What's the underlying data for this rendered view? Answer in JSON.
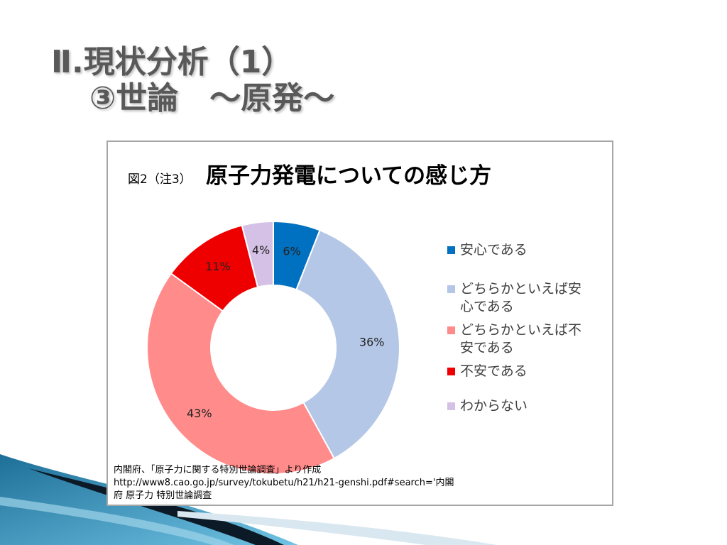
{
  "slide": {
    "title_line1": "Ⅱ.現状分析（1）",
    "title_line2": "③世論　～原発～"
  },
  "chart_data": {
    "type": "pie",
    "donut": true,
    "title_prefix": "図2（注3）",
    "title": "原子力発電についての感じ方",
    "categories": [
      "安心である",
      "どちらかといえば安心である",
      "どちらかといえば不安である",
      "不安である",
      "わからない"
    ],
    "legend_lines": [
      [
        "安心である"
      ],
      [
        "どちらかといえば安",
        "心である"
      ],
      [
        "どちらかといえば不",
        "安である"
      ],
      [
        "不安である"
      ],
      [
        "わからない"
      ]
    ],
    "values": [
      6,
      36,
      43,
      11,
      4
    ],
    "labels": [
      "6%",
      "36%",
      "43%",
      "11%",
      "4%"
    ],
    "colors": [
      "#0070c0",
      "#b4c7e7",
      "#ff8b8b",
      "#ee0000",
      "#d5c1e6"
    ],
    "legend_position": "right"
  },
  "source": {
    "line1": "内閣府、「原子力に関する特別世論調査」より作成",
    "line2": "http://www8.cao.go.jp/survey/tokubetu/h21/h21-genshi.pdf#search='内閣",
    "line3": "府 原子力 特別世論調査"
  }
}
